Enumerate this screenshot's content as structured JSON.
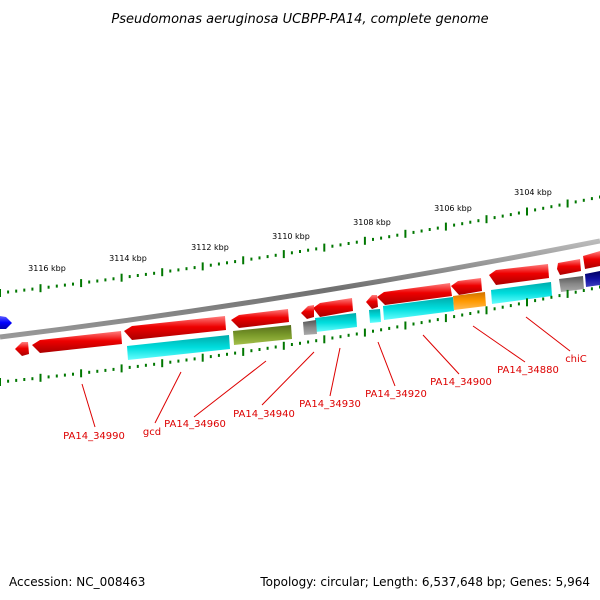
{
  "title": "Pseudomonas aeruginosa UCBPP-PA14, complete genome",
  "footer": {
    "accession": "Accession: NC_008463",
    "topology": "Topology: circular; Length: 6,537,648 bp; Genes: 5,964"
  },
  "colors": {
    "backbone": "#808080",
    "gene_red": "#ee0000",
    "cds_cyan": "#00cccc",
    "cds_olive": "#6b8e23",
    "cds_orange": "#ff8c00",
    "cds_gray": "#777777",
    "cds_navy": "#000080",
    "blue": "#0000ff",
    "tick_green": "#007700",
    "label_red": "#dd0000"
  },
  "scale_labels": [
    "3116 kbp",
    "3114 kbp",
    "3112 kbp",
    "3110 kbp",
    "3108 kbp",
    "3106 kbp",
    "3104 kbp"
  ],
  "gene_labels": [
    "PA14_34990",
    "gcd",
    "PA14_34960",
    "PA14_34940",
    "PA14_34930",
    "PA14_34920",
    "PA14_34900",
    "PA14_34880",
    "chiC"
  ]
}
